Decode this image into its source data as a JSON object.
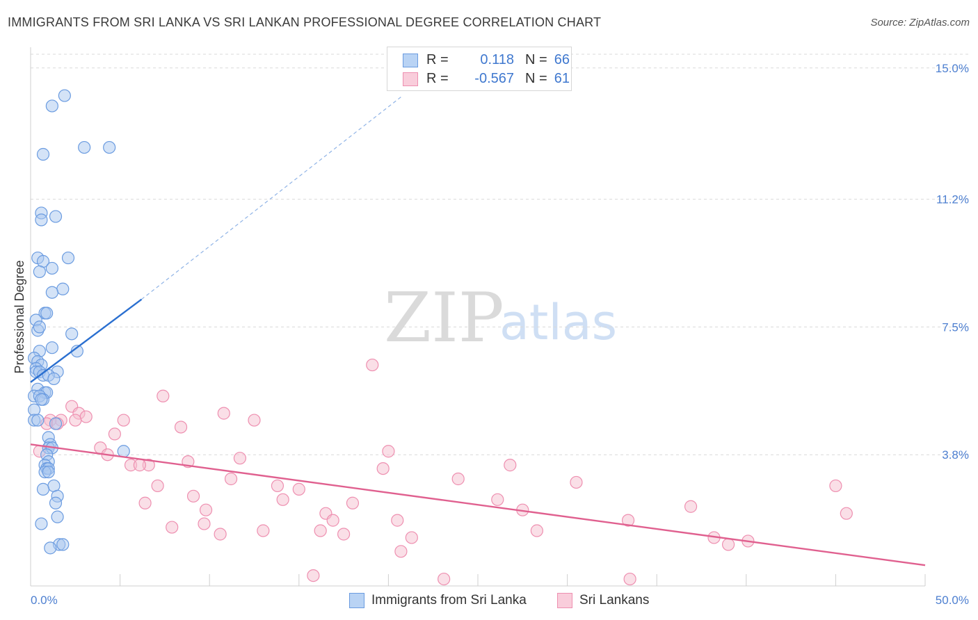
{
  "header": {
    "title": "IMMIGRANTS FROM SRI LANKA VS SRI LANKAN PROFESSIONAL DEGREE CORRELATION CHART",
    "source": "Source: ZipAtlas.com"
  },
  "watermark": {
    "zip": "ZIP",
    "atlas": "atlas"
  },
  "legend": {
    "rows": [
      {
        "r_label": "R =",
        "r_value": "0.118",
        "n_label": "N =",
        "n_value": "66"
      },
      {
        "r_label": "R =",
        "r_value": "-0.567",
        "n_label": "N =",
        "n_value": "61"
      }
    ]
  },
  "colors": {
    "blue_fill": "#a9c8f0",
    "blue_stroke": "#6a9be0",
    "blue_line": "#2a6fd0",
    "pink_fill": "#f6bfd0",
    "pink_stroke": "#ee8fb0",
    "pink_line": "#e0608f",
    "value_text": "#3f78cf"
  },
  "chart_data": {
    "type": "scatter",
    "title": "IMMIGRANTS FROM SRI LANKA VS SRI LANKAN PROFESSIONAL DEGREE CORRELATION CHART",
    "xlabel": "",
    "ylabel": "Professional Degree",
    "xlim": [
      0,
      50
    ],
    "ylim": [
      0,
      15.6
    ],
    "x_tick_labels": [
      "0.0%",
      "50.0%"
    ],
    "y_ticks": [
      {
        "value": 3.8,
        "label": "3.8%"
      },
      {
        "value": 7.5,
        "label": "7.5%"
      },
      {
        "value": 11.2,
        "label": "11.2%"
      },
      {
        "value": 15.0,
        "label": "15.0%"
      }
    ],
    "series": [
      {
        "name": "Immigrants from Sri Lanka",
        "color": "blue",
        "points": [
          [
            1.9,
            14.2
          ],
          [
            1.2,
            13.9
          ],
          [
            3.0,
            12.7
          ],
          [
            4.4,
            12.7
          ],
          [
            0.7,
            12.5
          ],
          [
            0.6,
            10.8
          ],
          [
            1.4,
            10.7
          ],
          [
            0.6,
            10.6
          ],
          [
            0.4,
            9.5
          ],
          [
            0.7,
            9.4
          ],
          [
            2.1,
            9.5
          ],
          [
            0.5,
            9.1
          ],
          [
            1.2,
            9.2
          ],
          [
            1.8,
            8.6
          ],
          [
            1.2,
            8.5
          ],
          [
            0.8,
            7.9
          ],
          [
            0.9,
            7.9
          ],
          [
            0.3,
            7.7
          ],
          [
            0.4,
            7.4
          ],
          [
            0.5,
            7.5
          ],
          [
            2.3,
            7.3
          ],
          [
            1.2,
            6.9
          ],
          [
            0.5,
            6.8
          ],
          [
            2.6,
            6.8
          ],
          [
            0.2,
            6.6
          ],
          [
            0.4,
            6.5
          ],
          [
            0.6,
            6.4
          ],
          [
            0.3,
            6.3
          ],
          [
            0.3,
            6.2
          ],
          [
            0.5,
            6.2
          ],
          [
            1.5,
            6.2
          ],
          [
            0.7,
            6.1
          ],
          [
            1.0,
            6.1
          ],
          [
            1.3,
            6.0
          ],
          [
            0.4,
            5.7
          ],
          [
            0.8,
            5.6
          ],
          [
            0.9,
            5.6
          ],
          [
            0.2,
            5.5
          ],
          [
            0.5,
            5.5
          ],
          [
            0.7,
            5.4
          ],
          [
            0.6,
            5.4
          ],
          [
            0.2,
            5.1
          ],
          [
            0.2,
            4.8
          ],
          [
            0.4,
            4.8
          ],
          [
            1.4,
            4.7
          ],
          [
            1.0,
            4.3
          ],
          [
            1.1,
            4.1
          ],
          [
            1.0,
            4.0
          ],
          [
            1.2,
            4.0
          ],
          [
            5.2,
            3.9
          ],
          [
            0.9,
            3.8
          ],
          [
            1.0,
            3.6
          ],
          [
            0.8,
            3.5
          ],
          [
            0.9,
            3.4
          ],
          [
            1.0,
            3.4
          ],
          [
            0.8,
            3.3
          ],
          [
            1.3,
            2.9
          ],
          [
            0.7,
            2.8
          ],
          [
            1.5,
            2.6
          ],
          [
            1.4,
            2.4
          ],
          [
            1.5,
            2.0
          ],
          [
            1.6,
            1.2
          ],
          [
            1.8,
            1.2
          ],
          [
            1.1,
            1.1
          ],
          [
            0.6,
            1.8
          ],
          [
            1.0,
            3.3
          ]
        ]
      },
      {
        "name": "Sri Lankans",
        "color": "pink",
        "points": [
          [
            19.1,
            6.4
          ],
          [
            7.4,
            5.5
          ],
          [
            2.3,
            5.2
          ],
          [
            10.8,
            5.0
          ],
          [
            2.7,
            5.0
          ],
          [
            3.1,
            4.9
          ],
          [
            2.5,
            4.8
          ],
          [
            5.2,
            4.8
          ],
          [
            12.5,
            4.8
          ],
          [
            1.7,
            4.8
          ],
          [
            1.1,
            4.8
          ],
          [
            8.4,
            4.6
          ],
          [
            0.9,
            4.7
          ],
          [
            1.5,
            4.7
          ],
          [
            4.7,
            4.4
          ],
          [
            3.9,
            4.0
          ],
          [
            0.5,
            3.9
          ],
          [
            20.0,
            3.9
          ],
          [
            4.3,
            3.8
          ],
          [
            11.7,
            3.7
          ],
          [
            8.8,
            3.6
          ],
          [
            5.6,
            3.5
          ],
          [
            6.6,
            3.5
          ],
          [
            6.1,
            3.5
          ],
          [
            26.8,
            3.5
          ],
          [
            19.7,
            3.4
          ],
          [
            11.2,
            3.1
          ],
          [
            23.9,
            3.1
          ],
          [
            30.5,
            3.0
          ],
          [
            13.8,
            2.9
          ],
          [
            7.1,
            2.9
          ],
          [
            15.0,
            2.8
          ],
          [
            45.0,
            2.9
          ],
          [
            9.1,
            2.6
          ],
          [
            6.4,
            2.4
          ],
          [
            14.1,
            2.5
          ],
          [
            18.0,
            2.4
          ],
          [
            26.1,
            2.5
          ],
          [
            36.9,
            2.3
          ],
          [
            27.5,
            2.2
          ],
          [
            9.8,
            2.2
          ],
          [
            16.5,
            2.1
          ],
          [
            20.5,
            1.9
          ],
          [
            33.4,
            1.9
          ],
          [
            16.9,
            1.9
          ],
          [
            45.6,
            2.1
          ],
          [
            9.7,
            1.8
          ],
          [
            7.9,
            1.7
          ],
          [
            28.3,
            1.6
          ],
          [
            13.0,
            1.6
          ],
          [
            16.2,
            1.6
          ],
          [
            17.5,
            1.5
          ],
          [
            10.6,
            1.5
          ],
          [
            21.3,
            1.4
          ],
          [
            38.2,
            1.4
          ],
          [
            40.1,
            1.3
          ],
          [
            39.0,
            1.2
          ],
          [
            20.7,
            1.0
          ],
          [
            15.8,
            0.3
          ],
          [
            23.1,
            0.2
          ],
          [
            33.5,
            0.2
          ]
        ]
      }
    ],
    "trend_lines": [
      {
        "series": "Immigrants from Sri Lanka",
        "solid": [
          [
            0,
            5.9
          ],
          [
            6.2,
            8.3
          ]
        ],
        "dashed": [
          [
            6.2,
            8.3
          ],
          [
            20.8,
            14.2
          ]
        ]
      },
      {
        "series": "Sri Lankans",
        "solid": [
          [
            0,
            4.1
          ],
          [
            50,
            0.6
          ]
        ]
      }
    ],
    "grid": true,
    "legend_position": "top-center"
  }
}
